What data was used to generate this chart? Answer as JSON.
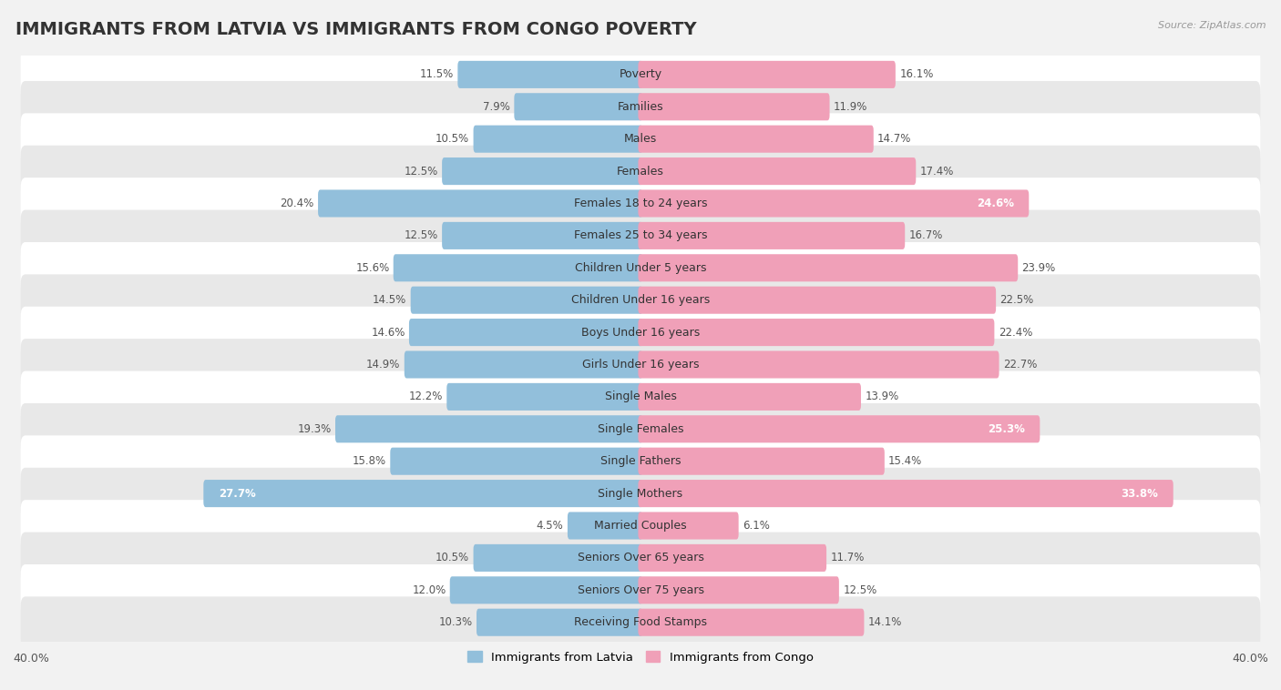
{
  "title": "IMMIGRANTS FROM LATVIA VS IMMIGRANTS FROM CONGO POVERTY",
  "source": "Source: ZipAtlas.com",
  "categories": [
    "Poverty",
    "Families",
    "Males",
    "Females",
    "Females 18 to 24 years",
    "Females 25 to 34 years",
    "Children Under 5 years",
    "Children Under 16 years",
    "Boys Under 16 years",
    "Girls Under 16 years",
    "Single Males",
    "Single Females",
    "Single Fathers",
    "Single Mothers",
    "Married Couples",
    "Seniors Over 65 years",
    "Seniors Over 75 years",
    "Receiving Food Stamps"
  ],
  "latvia_values": [
    11.5,
    7.9,
    10.5,
    12.5,
    20.4,
    12.5,
    15.6,
    14.5,
    14.6,
    14.9,
    12.2,
    19.3,
    15.8,
    27.7,
    4.5,
    10.5,
    12.0,
    10.3
  ],
  "congo_values": [
    16.1,
    11.9,
    14.7,
    17.4,
    24.6,
    16.7,
    23.9,
    22.5,
    22.4,
    22.7,
    13.9,
    25.3,
    15.4,
    33.8,
    6.1,
    11.7,
    12.5,
    14.1
  ],
  "latvia_color": "#92bfdb",
  "congo_color": "#f0a0b8",
  "latvia_label": "Immigrants from Latvia",
  "congo_label": "Immigrants from Congo",
  "axis_limit": 40.0,
  "background_color": "#f2f2f2",
  "row_color_odd": "#ffffff",
  "row_color_even": "#e8e8e8",
  "title_fontsize": 14,
  "label_fontsize": 9,
  "value_fontsize": 8.5,
  "latvia_inside_threshold": 25.0,
  "congo_inside_threshold": 24.0
}
